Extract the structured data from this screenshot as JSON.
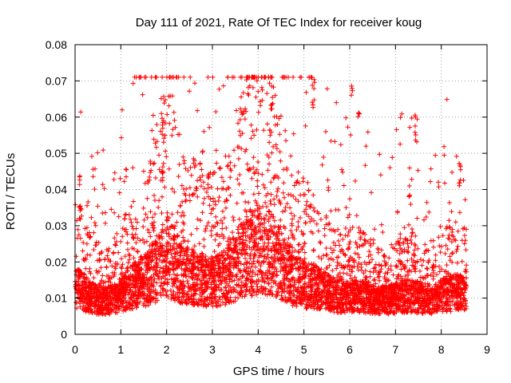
{
  "chart_data": {
    "type": "scatter",
    "title": "Day 111 of 2021, Rate Of TEC Index for receiver koug",
    "xlabel": "GPS time / hours",
    "ylabel": "ROTI / TECUs",
    "xlim": [
      0,
      9
    ],
    "ylim": [
      0,
      0.08
    ],
    "xticks": [
      0,
      1,
      2,
      3,
      4,
      5,
      6,
      7,
      8,
      9
    ],
    "yticks": [
      0,
      0.01,
      0.02,
      0.03,
      0.04,
      0.05,
      0.06,
      0.07,
      0.08
    ],
    "xtick_labels": [
      "0",
      "1",
      "2",
      "3",
      "4",
      "5",
      "6",
      "7",
      "8",
      "9"
    ],
    "ytick_labels": [
      "0",
      "0.01",
      "0.02",
      "0.03",
      "0.04",
      "0.05",
      "0.06",
      "0.07",
      "0.08"
    ],
    "grid": true,
    "marker": "+",
    "series_color": "#ff0000",
    "x_data_range": [
      0,
      8.55
    ],
    "highlights": [
      {
        "x": 0.08,
        "y": 0.044
      },
      {
        "x": 0.1,
        "y": 0.036
      },
      {
        "x": 1.1,
        "y": 0.046
      },
      {
        "x": 1.9,
        "y": 0.061
      },
      {
        "x": 1.92,
        "y": 0.057
      },
      {
        "x": 1.9,
        "y": 0.047
      },
      {
        "x": 3.7,
        "y": 0.063
      },
      {
        "x": 3.8,
        "y": 0.069
      },
      {
        "x": 4.3,
        "y": 0.066
      },
      {
        "x": 5.2,
        "y": 0.071
      },
      {
        "x": 5.2,
        "y": 0.065
      },
      {
        "x": 6.05,
        "y": 0.069
      },
      {
        "x": 6.2,
        "y": 0.062
      },
      {
        "x": 7.45,
        "y": 0.061
      },
      {
        "x": 7.45,
        "y": 0.057
      },
      {
        "x": 7.3,
        "y": 0.042
      },
      {
        "x": 8.4,
        "y": 0.049
      },
      {
        "x": 8.4,
        "y": 0.044
      }
    ]
  }
}
